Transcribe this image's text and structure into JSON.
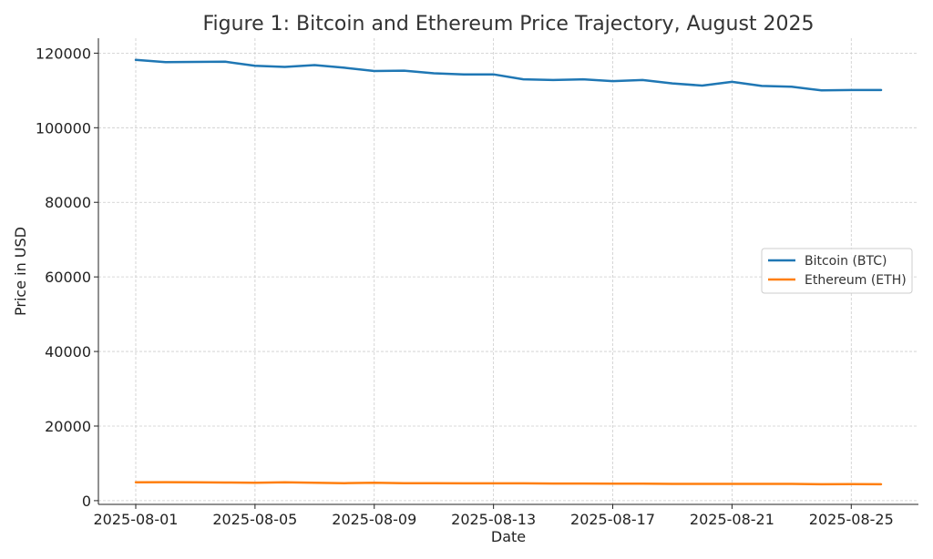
{
  "chart_data": {
    "type": "line",
    "title": "Figure 1: Bitcoin and Ethereum Price Trajectory, August 2025",
    "xlabel": "Date",
    "ylabel": "Price in USD",
    "x": [
      "2025-08-01",
      "2025-08-02",
      "2025-08-03",
      "2025-08-04",
      "2025-08-05",
      "2025-08-06",
      "2025-08-07",
      "2025-08-08",
      "2025-08-09",
      "2025-08-10",
      "2025-08-11",
      "2025-08-12",
      "2025-08-13",
      "2025-08-14",
      "2025-08-15",
      "2025-08-16",
      "2025-08-17",
      "2025-08-18",
      "2025-08-19",
      "2025-08-20",
      "2025-08-21",
      "2025-08-22",
      "2025-08-23",
      "2025-08-24",
      "2025-08-25",
      "2025-08-26"
    ],
    "xticks": [
      "2025-08-01",
      "2025-08-05",
      "2025-08-09",
      "2025-08-13",
      "2025-08-17",
      "2025-08-21",
      "2025-08-25"
    ],
    "yticks": [
      0,
      20000,
      40000,
      60000,
      80000,
      100000,
      120000
    ],
    "ylim": [
      -1000,
      124000
    ],
    "grid": true,
    "legend_position": "center-right",
    "series": [
      {
        "name": "Bitcoin (BTC)",
        "color": "#1f77b4",
        "values": [
          118200,
          117600,
          117650,
          117700,
          116600,
          116300,
          116800,
          116100,
          115200,
          115300,
          114600,
          114300,
          114300,
          113000,
          112800,
          113000,
          112500,
          112800,
          111900,
          111300,
          112300,
          111200,
          111000,
          110000,
          110100,
          110100
        ]
      },
      {
        "name": "Ethereum (ETH)",
        "color": "#ff7f0e",
        "values": [
          4900,
          4950,
          4900,
          4850,
          4800,
          4900,
          4800,
          4700,
          4800,
          4700,
          4700,
          4650,
          4650,
          4650,
          4600,
          4600,
          4550,
          4550,
          4500,
          4500,
          4500,
          4500,
          4500,
          4400,
          4450,
          4400
        ]
      }
    ]
  }
}
